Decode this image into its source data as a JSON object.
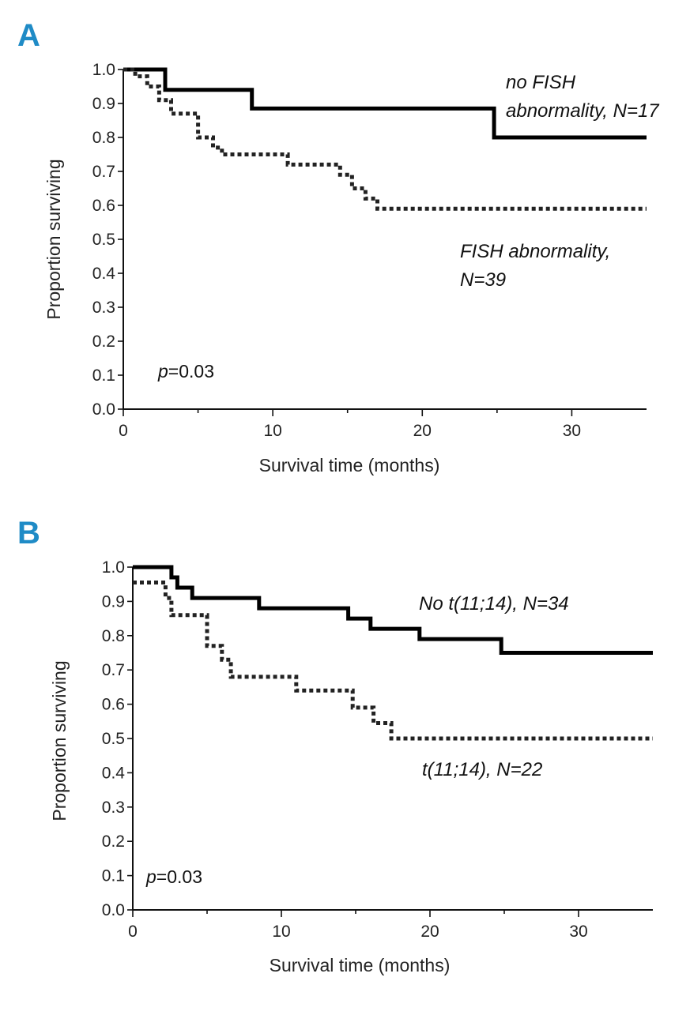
{
  "chart_data": [
    {
      "type": "line",
      "panel": "A",
      "xlabel": "Survival time (months)",
      "ylabel": "Proportion surviving",
      "xlim": [
        0,
        35
      ],
      "ylim": [
        0,
        1
      ],
      "xticks": [
        "0",
        "10",
        "20",
        "30"
      ],
      "yticks": [
        "0.0",
        "0.1",
        "0.2",
        "0.3",
        "0.4",
        "0.5",
        "0.6",
        "0.7",
        "0.8",
        "0.9",
        "1.0"
      ],
      "p_value": {
        "symbol": "p",
        "text": "=0.03"
      },
      "series": [
        {
          "name": "no FISH abnormality, N=17",
          "label_lines": [
            "no FISH",
            "abnormality, N=17"
          ],
          "style": "solid",
          "x": [
            0,
            2.8,
            2.8,
            8.6,
            8.6,
            24.8,
            24.8,
            35
          ],
          "y": [
            1.0,
            1.0,
            0.94,
            0.94,
            0.885,
            0.885,
            0.8,
            0.8
          ]
        },
        {
          "name": "FISH abnormality, N=39",
          "label_lines": [
            "FISH abnormality,",
            "N=39"
          ],
          "style": "dotted",
          "x": [
            0,
            0.8,
            0.8,
            1.6,
            1.6,
            2.4,
            2.4,
            3.2,
            3.2,
            5.0,
            5.0,
            6.0,
            6.0,
            6.6,
            6.6,
            11.0,
            11.0,
            14.5,
            14.5,
            15.3,
            15.3,
            16.2,
            16.2,
            17.0,
            17.0,
            19.5,
            19.5,
            35
          ],
          "y": [
            1.0,
            1.0,
            0.98,
            0.98,
            0.95,
            0.95,
            0.91,
            0.91,
            0.87,
            0.87,
            0.8,
            0.8,
            0.77,
            0.77,
            0.75,
            0.75,
            0.72,
            0.72,
            0.69,
            0.69,
            0.65,
            0.65,
            0.62,
            0.62,
            0.59,
            0.59,
            0.59,
            0.59
          ]
        }
      ]
    },
    {
      "type": "line",
      "panel": "B",
      "xlabel": "Survival time (months)",
      "ylabel": "Proportion surviving",
      "xlim": [
        0,
        35
      ],
      "ylim": [
        0,
        1
      ],
      "xticks": [
        "0",
        "10",
        "20",
        "30"
      ],
      "yticks": [
        "0.0",
        "0.1",
        "0.2",
        "0.3",
        "0.4",
        "0.5",
        "0.6",
        "0.7",
        "0.8",
        "0.9",
        "1.0"
      ],
      "p_value": {
        "symbol": "p",
        "text": "=0.03"
      },
      "series": [
        {
          "name": "No t(11;14), N=34",
          "label_lines": [
            "No t(11;14), N=34"
          ],
          "style": "solid",
          "x": [
            0,
            2.6,
            2.6,
            3.0,
            3.0,
            4.0,
            4.0,
            8.5,
            8.5,
            14.5,
            14.5,
            16.0,
            16.0,
            19.3,
            19.3,
            24.8,
            24.8,
            35
          ],
          "y": [
            1.0,
            1.0,
            0.97,
            0.97,
            0.94,
            0.94,
            0.91,
            0.91,
            0.88,
            0.88,
            0.85,
            0.85,
            0.82,
            0.82,
            0.79,
            0.79,
            0.75,
            0.75
          ]
        },
        {
          "name": "t(11;14), N=22",
          "label_lines": [
            "t(11;14), N=22"
          ],
          "style": "dotted",
          "x": [
            0,
            2.2,
            2.2,
            2.6,
            2.6,
            5.0,
            5.0,
            6.0,
            6.0,
            6.6,
            6.6,
            11.0,
            11.0,
            14.8,
            14.8,
            16.2,
            16.2,
            17.4,
            17.4,
            35
          ],
          "y": [
            0.955,
            0.955,
            0.91,
            0.91,
            0.86,
            0.86,
            0.77,
            0.77,
            0.73,
            0.73,
            0.68,
            0.68,
            0.64,
            0.64,
            0.59,
            0.59,
            0.545,
            0.545,
            0.5,
            0.5
          ]
        }
      ]
    }
  ]
}
